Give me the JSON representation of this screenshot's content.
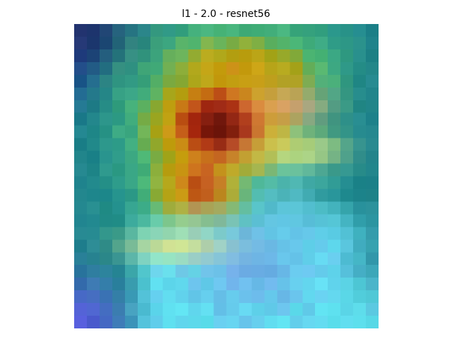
{
  "figure": {
    "title": "l1 - 2.0 - resnet56"
  },
  "heatmap": {
    "rows": 24,
    "cols": 24,
    "overlay": "jet colormap attribution over input image",
    "colors": {
      "dark_navy": "#26324a",
      "deep_blue": "#1c2a9a",
      "teal": "#1e8c8c",
      "green": "#4cc08a",
      "olive": "#a8a81c",
      "yellow": "#e8e070",
      "orange": "#d8803c",
      "red": "#b83010",
      "dark_red": "#6e1208",
      "salmon": "#f0a078",
      "cyan": "#60e0f0",
      "light_blue": "#70b8e8",
      "violet": "#5858e0"
    }
  }
}
